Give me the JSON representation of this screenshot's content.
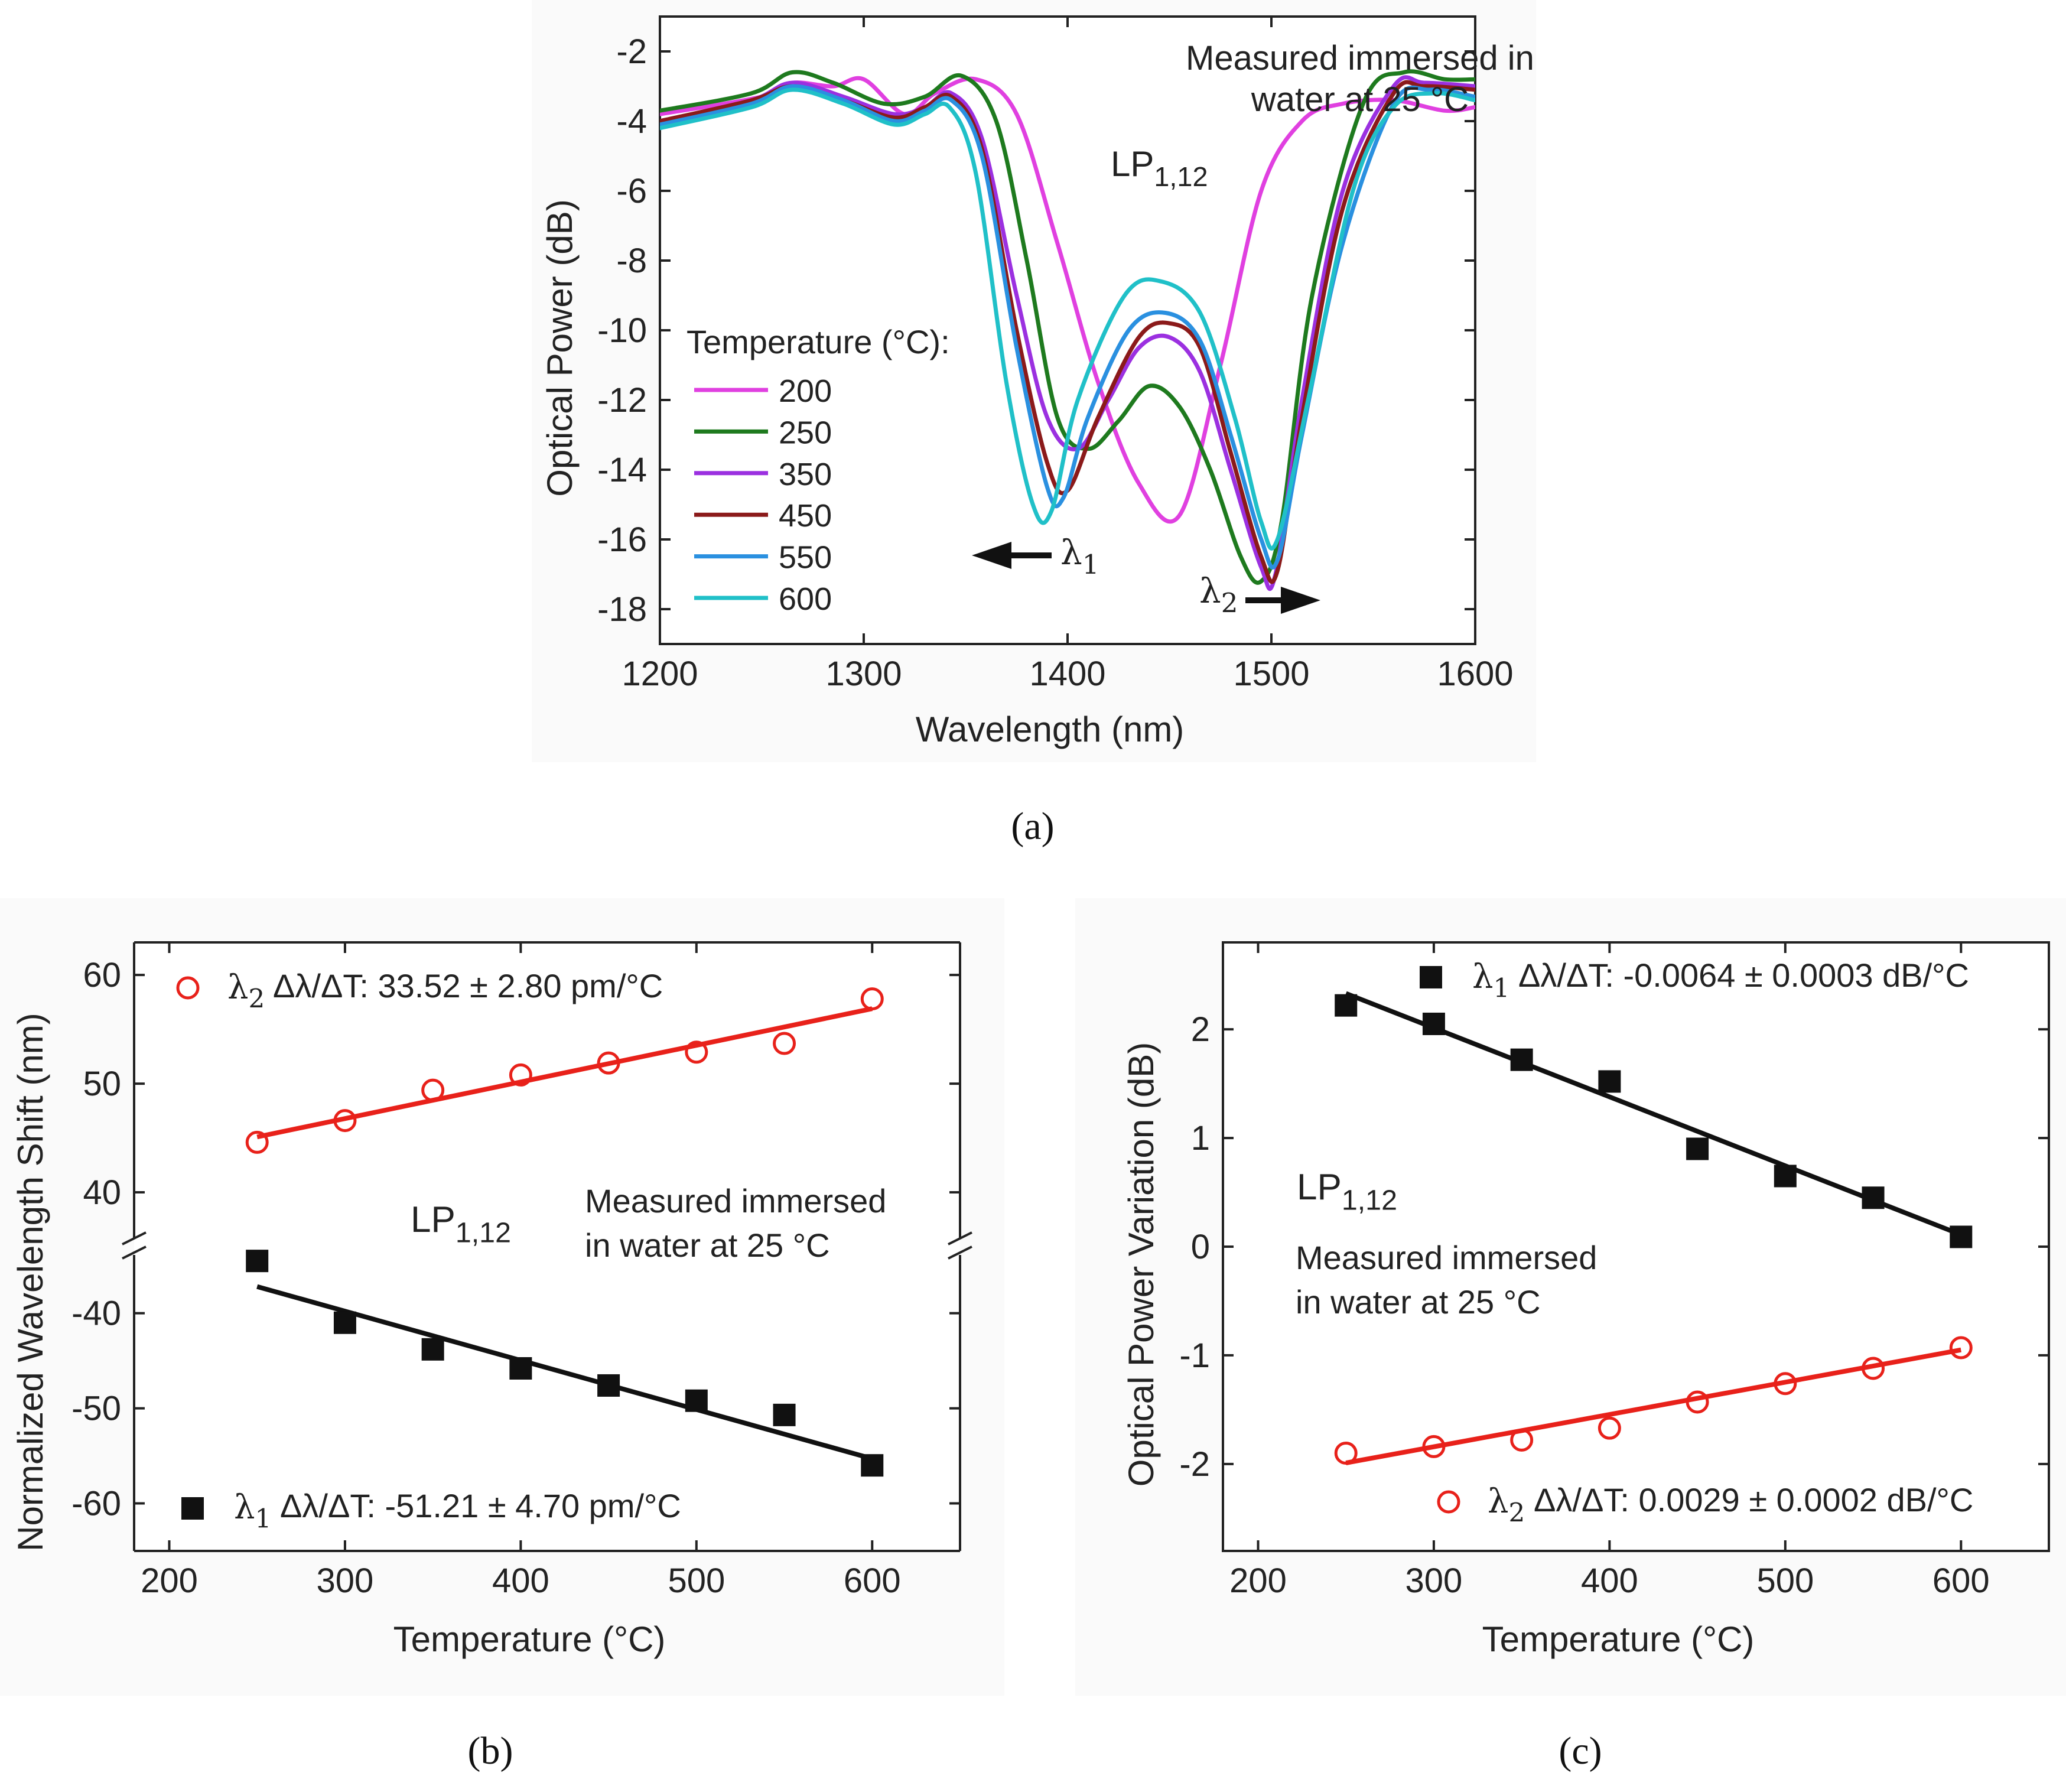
{
  "chart_data": [
    {
      "id": "a",
      "type": "line",
      "xlabel": "Wavelength (nm)",
      "ylabel": "Optical Power (dB)",
      "xlim": [
        1200,
        1600
      ],
      "ylim": [
        -19,
        -1
      ],
      "xticks": [
        1200,
        1300,
        1400,
        1500,
        1600
      ],
      "yticks": [
        -2,
        -4,
        -6,
        -8,
        -10,
        -12,
        -14,
        -16,
        -18
      ],
      "annotation": [
        "Measured immersed in",
        "water at 25 °C"
      ],
      "mode_label": "LP",
      "mode_sub": "1,12",
      "legend_title": "Temperature (°C):",
      "lambda1": {
        "symbol": "λ",
        "sub": "1"
      },
      "lambda2": {
        "symbol": "λ",
        "sub": "2"
      },
      "series": [
        {
          "name": "200",
          "color": "#e040e0",
          "x": [
            1200,
            1250,
            1265,
            1285,
            1300,
            1320,
            1335,
            1355,
            1375,
            1395,
            1415,
            1435,
            1455,
            1475,
            1495,
            1515,
            1535,
            1560,
            1585,
            1600
          ],
          "y": [
            -3.8,
            -3.3,
            -2.9,
            -3.0,
            -2.8,
            -3.8,
            -3.2,
            -2.8,
            -3.8,
            -7.5,
            -11.5,
            -14.4,
            -15.3,
            -11.0,
            -6.0,
            -4.0,
            -3.5,
            -3.4,
            -3.7,
            -3.6
          ]
        },
        {
          "name": "250",
          "color": "#1e7a1e",
          "x": [
            1200,
            1245,
            1265,
            1285,
            1310,
            1330,
            1348,
            1365,
            1380,
            1395,
            1410,
            1425,
            1440,
            1455,
            1470,
            1485,
            1495,
            1505,
            1520,
            1545,
            1565,
            1585,
            1600
          ],
          "y": [
            -3.7,
            -3.2,
            -2.6,
            -2.9,
            -3.5,
            -3.3,
            -2.7,
            -4.0,
            -8.0,
            -12.5,
            -13.4,
            -12.6,
            -11.6,
            -12.2,
            -14.0,
            -16.5,
            -17.2,
            -15.5,
            -9.0,
            -3.5,
            -2.6,
            -2.8,
            -2.8
          ]
        },
        {
          "name": "350",
          "color": "#9b30e0",
          "x": [
            1200,
            1245,
            1265,
            1290,
            1315,
            1330,
            1343,
            1358,
            1375,
            1390,
            1405,
            1420,
            1435,
            1450,
            1465,
            1480,
            1495,
            1502,
            1515,
            1535,
            1560,
            1575,
            1600
          ],
          "y": [
            -4.0,
            -3.4,
            -2.9,
            -3.3,
            -3.8,
            -3.6,
            -3.2,
            -4.5,
            -9.0,
            -12.5,
            -13.4,
            -12.0,
            -10.5,
            -10.2,
            -11.2,
            -14.0,
            -16.8,
            -17.0,
            -12.0,
            -6.0,
            -3.0,
            -2.9,
            -3.0
          ]
        },
        {
          "name": "450",
          "color": "#8b1a1a",
          "x": [
            1200,
            1245,
            1265,
            1290,
            1315,
            1330,
            1343,
            1358,
            1375,
            1390,
            1400,
            1415,
            1435,
            1450,
            1465,
            1480,
            1495,
            1503,
            1515,
            1535,
            1560,
            1575,
            1600
          ],
          "y": [
            -4.0,
            -3.4,
            -3.0,
            -3.4,
            -3.9,
            -3.6,
            -3.3,
            -4.8,
            -10.0,
            -13.8,
            -14.6,
            -12.5,
            -10.2,
            -9.8,
            -10.5,
            -13.5,
            -16.5,
            -16.9,
            -12.5,
            -6.5,
            -3.2,
            -3.0,
            -3.1
          ]
        },
        {
          "name": "550",
          "color": "#2a90e0",
          "x": [
            1200,
            1245,
            1265,
            1290,
            1315,
            1330,
            1343,
            1358,
            1375,
            1390,
            1398,
            1410,
            1430,
            1448,
            1465,
            1480,
            1495,
            1503,
            1515,
            1535,
            1560,
            1578,
            1600
          ],
          "y": [
            -4.1,
            -3.5,
            -3.0,
            -3.4,
            -4.0,
            -3.7,
            -3.4,
            -5.0,
            -10.5,
            -14.5,
            -14.8,
            -12.5,
            -10.0,
            -9.5,
            -10.3,
            -13.0,
            -16.0,
            -16.6,
            -13.0,
            -7.5,
            -3.5,
            -3.1,
            -3.3
          ]
        },
        {
          "name": "600",
          "color": "#20c0c8",
          "x": [
            1200,
            1245,
            1265,
            1290,
            1315,
            1330,
            1342,
            1355,
            1370,
            1383,
            1392,
            1405,
            1428,
            1446,
            1465,
            1482,
            1495,
            1503,
            1518,
            1540,
            1560,
            1580,
            1600
          ],
          "y": [
            -4.2,
            -3.6,
            -3.1,
            -3.5,
            -4.1,
            -3.8,
            -3.6,
            -5.5,
            -11.5,
            -15.0,
            -15.2,
            -12.0,
            -9.0,
            -8.6,
            -9.5,
            -12.5,
            -15.5,
            -16.0,
            -12.0,
            -6.0,
            -3.6,
            -3.2,
            -3.4
          ]
        }
      ]
    },
    {
      "id": "b",
      "type": "scatter",
      "xlabel": "Temperature (°C)",
      "ylabel": "Normalized Wavelength Shift (nm)",
      "xlim": [
        180,
        650
      ],
      "xticks": [
        200,
        300,
        400,
        500,
        600
      ],
      "upper_ylim": [
        35,
        63
      ],
      "upper_yticks": [
        40,
        50,
        60
      ],
      "lower_ylim": [
        -65,
        -33
      ],
      "lower_yticks": [
        -40,
        -50,
        -60
      ],
      "mode_label": "LP",
      "mode_sub": "1,12",
      "annotation": [
        "Measured immersed",
        "in water at 25 °C"
      ],
      "series": [
        {
          "name": "λ2",
          "sub": "2",
          "legend": "Δλ/ΔT: 33.52 ± 2.80 pm/°C",
          "marker": "circle",
          "color": "#e8211a",
          "x": [
            250,
            300,
            350,
            400,
            450,
            500,
            550,
            600
          ],
          "y": [
            44.6,
            46.6,
            49.4,
            50.8,
            51.9,
            52.9,
            53.7,
            57.8
          ],
          "fit": [
            45.1,
            56.9
          ]
        },
        {
          "name": "λ1",
          "sub": "1",
          "legend": "Δλ/ΔT: -51.21 ± 4.70 pm/°C",
          "marker": "square",
          "color": "#111111",
          "x": [
            250,
            300,
            350,
            400,
            450,
            500,
            550,
            600
          ],
          "y": [
            -34.5,
            -41.0,
            -43.8,
            -45.8,
            -47.6,
            -49.2,
            -50.7,
            -56.0
          ],
          "fit": [
            -37.2,
            -55.3
          ]
        }
      ]
    },
    {
      "id": "c",
      "type": "scatter",
      "xlabel": "Temperature (°C)",
      "ylabel": "Optical Power Variation (dB)",
      "xlim": [
        180,
        650
      ],
      "xticks": [
        200,
        300,
        400,
        500,
        600
      ],
      "ylim": [
        -2.8,
        2.8
      ],
      "yticks": [
        2,
        1,
        0,
        -1,
        -2
      ],
      "mode_label": "LP",
      "mode_sub": "1,12",
      "annotation": [
        "Measured immersed",
        "in water at 25 °C"
      ],
      "series": [
        {
          "name": "λ1",
          "sub": "1",
          "legend": "Δλ/ΔT: -0.0064 ± 0.0003 dB/°C",
          "marker": "square",
          "color": "#111111",
          "x": [
            250,
            300,
            350,
            400,
            450,
            500,
            550,
            600
          ],
          "y": [
            2.22,
            2.05,
            1.72,
            1.52,
            0.9,
            0.65,
            0.45,
            0.09
          ],
          "fit": [
            2.33,
            0.11
          ]
        },
        {
          "name": "λ2",
          "sub": "2",
          "legend": "Δλ/ΔT: 0.0029 ± 0.0002 dB/°C",
          "marker": "circle",
          "color": "#e8211a",
          "x": [
            250,
            300,
            350,
            400,
            450,
            500,
            550,
            600
          ],
          "y": [
            -1.9,
            -1.84,
            -1.78,
            -1.67,
            -1.43,
            -1.26,
            -1.12,
            -0.93
          ],
          "fit": [
            -1.99,
            -0.95
          ]
        }
      ]
    }
  ],
  "captions": {
    "a": "(a)",
    "b": "(b)",
    "c": "(c)"
  }
}
